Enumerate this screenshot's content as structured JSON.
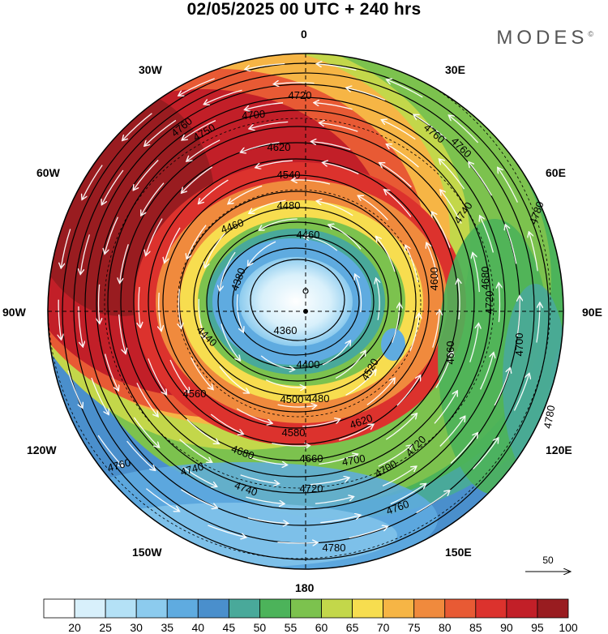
{
  "title": "02/05/2025  00 UTC  + 240 hrs",
  "brand": "MODES",
  "brand_mark": "©",
  "longitude_labels": [
    "0",
    "30E",
    "60E",
    "90E",
    "120E",
    "150E",
    "180",
    "150W",
    "120W",
    "90W",
    "60W",
    "30W"
  ],
  "reference_vector": {
    "label": "50",
    "value": 50
  },
  "colorbar": {
    "labels": [
      "20",
      "25",
      "30",
      "35",
      "40",
      "45",
      "50",
      "55",
      "60",
      "65",
      "70",
      "75",
      "80",
      "85",
      "90",
      "95",
      "100"
    ],
    "colors": [
      "#ffffff",
      "#d8f0fb",
      "#b4e1f6",
      "#8ccbee",
      "#5fabe0",
      "#4a8fcc",
      "#49a99a",
      "#4cb35a",
      "#7cc24e",
      "#c3d74a",
      "#f7dd4f",
      "#f6b545",
      "#f08a3d",
      "#e85a34",
      "#dc322d",
      "#c21f28",
      "#991c20"
    ]
  },
  "contour_labels": [
    "4720",
    "4700",
    "4760",
    "4760",
    "4750",
    "4620",
    "4540",
    "4480",
    "4460",
    "4460",
    "4380",
    "4360",
    "4400",
    "4440",
    "4480",
    "4500",
    "4520",
    "4560",
    "4580",
    "4620",
    "4660",
    "4680",
    "4700",
    "4720",
    "4740",
    "4760",
    "4780",
    "4780",
    "4760",
    "4740",
    "4720",
    "4700",
    "4680",
    "4600",
    "4660",
    "4700",
    "4720",
    "4740",
    "4760",
    "4780"
  ],
  "colors": {
    "wind_arrow": "#ffffff",
    "contour": "#000000",
    "grid": "#000000"
  }
}
